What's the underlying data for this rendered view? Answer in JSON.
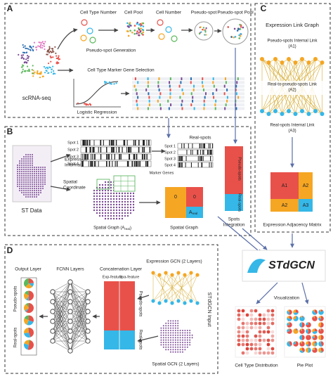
{
  "panel_a": {
    "label": "A",
    "cell_type_number": "Cell Type Number",
    "cell_pool": "Cell Pool",
    "cell_number": "Cell Number",
    "pseudo_spot": "Pseudo-spot",
    "pseudo_spot_pool": "Pseudo-spot Pool",
    "pseudo_spot_generation": "Pseudo-spot Generation",
    "marker_gene_selection": "Cell Type Marker Gene Selection",
    "scrna_seq": "scRNA-seq",
    "logistic_regression": "Logistic Regression"
  },
  "panel_b": {
    "label": "B",
    "real_spots_title": "Real-spots",
    "spots_left": [
      "Spot 1",
      "Spot 2",
      "Spot 3",
      "Spot 4"
    ],
    "spots_right": [
      "Spot 1",
      "Spot 2",
      "Spot 3",
      "Spot 4"
    ],
    "marker_genes": "Marker Genes",
    "expression_information": [
      "Expression",
      "Information"
    ],
    "spatial_coordinate": [
      "Spatial",
      "Coordinate"
    ],
    "st_data": "ST Data",
    "spatial_graph_a_real": [
      "Spatial Graph (A",
      "real",
      ")"
    ],
    "matrix_zeros": [
      "0",
      "0"
    ],
    "matrix_a_real": [
      "A",
      "real"
    ],
    "spatial_graph": "Spatial Graph",
    "pseudo_spots": "Pseudo-spots",
    "real_spots": "Real-spots",
    "spots_integration": [
      "Spots",
      "Integration"
    ]
  },
  "panel_c": {
    "label": "C",
    "title": "Expression Link Graph",
    "a1": [
      "Pseudo-spots Internal Link",
      "(A1)"
    ],
    "a2": [
      "Real-to-pseudo-spots Link",
      "(A2)"
    ],
    "a3": [
      "Real-spots Internal Link",
      "(A3)"
    ],
    "matrix": [
      "A1",
      "A2",
      "A2",
      "A3"
    ],
    "matrix_label": "Expression Adjacency Matrix"
  },
  "panel_d": {
    "label": "D",
    "output_layer": "Output Layer",
    "fcnn_layers": "FCNN Layers",
    "concatenation_layer": "Concatenation Layer",
    "expression_gcn": "Expression GCN (2 Layers)",
    "exp_feature": "Exp-feature",
    "spa_feature": "Spa-feature",
    "pseudo_spots": "Pseudo-spots",
    "real_spots": "Real-spots",
    "input_label": "STdGCN Input",
    "spatial_gcn": "Spatial GCN (2 Layers)",
    "output_pseudo": "Pseudo-spots",
    "output_real": "Real-spots"
  },
  "output": {
    "logo": "STdGCN",
    "visualization": "Visualization",
    "cell_type_distribution": "Cell Type Distribution",
    "pie_plot": "Pie Plot"
  }
}
